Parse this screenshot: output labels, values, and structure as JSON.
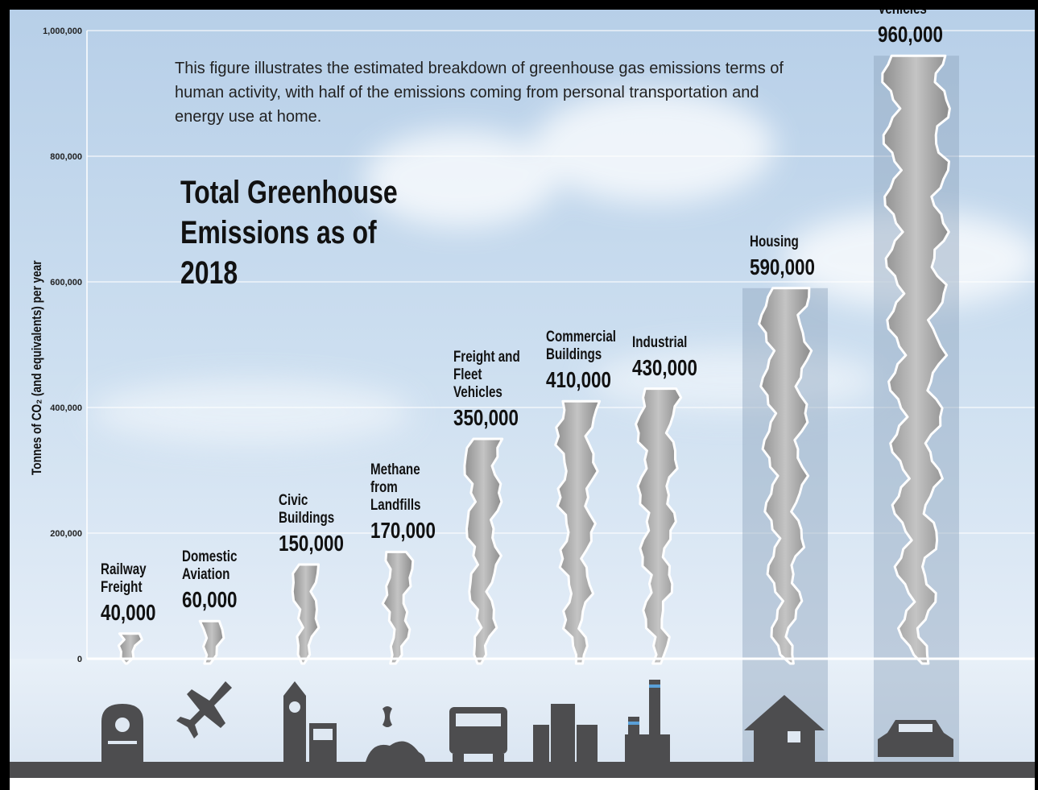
{
  "chart_data": {
    "type": "bar",
    "title": "Total Greenhouse Emissions as of 2018",
    "subtitle": "This figure illustrates the estimated breakdown of greenhouse gas emissions terms of human activity, with half of the emissions coming from personal transportation and energy use at home.",
    "y_label": "Tonnes of CO₂ (and equivalents) per year",
    "categories": [
      "Railway Freight",
      "Domestic Aviation",
      "Civic Buildings",
      "Methane from Landfills",
      "Freight and Fleet Vehicles",
      "Commercial Buildings",
      "Industrial",
      "Housing",
      "Personal Vehicles"
    ],
    "values": [
      40000,
      60000,
      150000,
      170000,
      350000,
      410000,
      430000,
      590000,
      960000
    ],
    "value_labels": [
      "40,000",
      "60,000",
      "150,000",
      "170,000",
      "350,000",
      "410,000",
      "430,000",
      "590,000",
      "960,000"
    ],
    "color": "#a9a9a9",
    "ylim": [
      0,
      1000000
    ],
    "yticks": [
      0,
      {
        "value": 200000,
        "label": "200,000"
      },
      {
        "value": 400000,
        "label": "400,000"
      },
      {
        "value": 600000,
        "label": "600,000"
      },
      {
        "value": 800000,
        "label": "800,000"
      },
      {
        "value": 1000000,
        "label": "1,000,000"
      }
    ],
    "grid": true
  }
}
